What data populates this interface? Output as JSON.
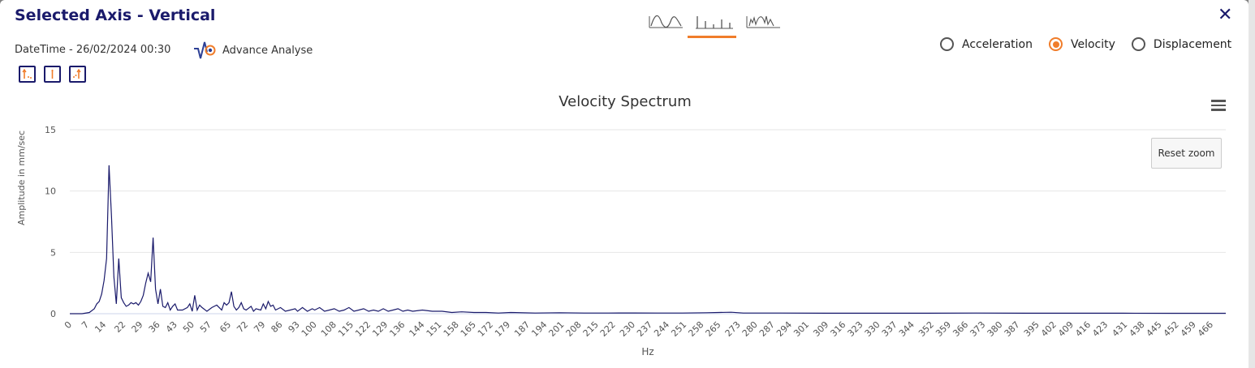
{
  "modal": {
    "title": "Selected Axis - Vertical",
    "close_icon": "close-icon",
    "datetime": "DateTime - 26/02/2024 00:30",
    "advance_analyse": "Advance Analyse"
  },
  "view_tabs": [
    {
      "name": "waveform-view-icon",
      "active": false
    },
    {
      "name": "spectrum-view-icon",
      "active": true
    },
    {
      "name": "combined-view-icon",
      "active": false
    }
  ],
  "radios": [
    {
      "label": "Acceleration",
      "selected": false
    },
    {
      "label": "Velocity",
      "selected": true
    },
    {
      "label": "Displacement",
      "selected": false
    }
  ],
  "reset_zoom": "Reset zoom",
  "colors": {
    "accent": "#f07d2b",
    "brand": "#1a1a6b",
    "series": "#1a1a6b",
    "grid": "#e6e6e6"
  },
  "chart_data": {
    "type": "line",
    "title": "Velocity Spectrum",
    "xlabel": "Hz",
    "ylabel": "Amplitude in mm/sec",
    "xlim": [
      0,
      472
    ],
    "ylim": [
      0,
      15
    ],
    "grid": true,
    "y_ticks": [
      "0",
      "5",
      "10",
      "15"
    ],
    "x_ticks": [
      "0",
      "7",
      "14",
      "22",
      "29",
      "36",
      "43",
      "50",
      "57",
      "65",
      "72",
      "79",
      "86",
      "93",
      "100",
      "108",
      "115",
      "122",
      "129",
      "136",
      "144",
      "151",
      "158",
      "165",
      "172",
      "179",
      "187",
      "194",
      "201",
      "208",
      "215",
      "222",
      "230",
      "237",
      "244",
      "251",
      "258",
      "265",
      "273",
      "280",
      "287",
      "294",
      "301",
      "309",
      "316",
      "323",
      "330",
      "337",
      "344",
      "352",
      "359",
      "366",
      "373",
      "380",
      "387",
      "395",
      "402",
      "409",
      "416",
      "423",
      "431",
      "438",
      "445",
      "452",
      "459",
      "466"
    ],
    "series": [
      {
        "points": [
          [
            0,
            0
          ],
          [
            5,
            0
          ],
          [
            8,
            0.1
          ],
          [
            10,
            0.4
          ],
          [
            11,
            0.8
          ],
          [
            12,
            1.0
          ],
          [
            13,
            1.6
          ],
          [
            14,
            2.7
          ],
          [
            15,
            4.5
          ],
          [
            16,
            12.1
          ],
          [
            17,
            8.0
          ],
          [
            18,
            3.0
          ],
          [
            19,
            0.8
          ],
          [
            20,
            4.5
          ],
          [
            21,
            1.3
          ],
          [
            22,
            0.9
          ],
          [
            23,
            0.6
          ],
          [
            24,
            0.7
          ],
          [
            25,
            0.9
          ],
          [
            26,
            0.8
          ],
          [
            27,
            0.9
          ],
          [
            28,
            0.7
          ],
          [
            29,
            1.0
          ],
          [
            30,
            1.5
          ],
          [
            31,
            2.5
          ],
          [
            32,
            3.3
          ],
          [
            33,
            2.6
          ],
          [
            34,
            6.2
          ],
          [
            35,
            2.0
          ],
          [
            36,
            0.8
          ],
          [
            37,
            2.0
          ],
          [
            38,
            0.6
          ],
          [
            39,
            0.5
          ],
          [
            40,
            0.9
          ],
          [
            41,
            0.3
          ],
          [
            42,
            0.6
          ],
          [
            43,
            0.8
          ],
          [
            44,
            0.3
          ],
          [
            46,
            0.3
          ],
          [
            48,
            0.5
          ],
          [
            49,
            0.8
          ],
          [
            50,
            0.2
          ],
          [
            51,
            1.5
          ],
          [
            52,
            0.3
          ],
          [
            53,
            0.7
          ],
          [
            54,
            0.5
          ],
          [
            56,
            0.2
          ],
          [
            58,
            0.5
          ],
          [
            60,
            0.7
          ],
          [
            62,
            0.3
          ],
          [
            63,
            0.9
          ],
          [
            64,
            0.7
          ],
          [
            65,
            0.9
          ],
          [
            66,
            1.8
          ],
          [
            67,
            0.6
          ],
          [
            68,
            0.3
          ],
          [
            69,
            0.5
          ],
          [
            70,
            0.9
          ],
          [
            71,
            0.4
          ],
          [
            72,
            0.3
          ],
          [
            74,
            0.6
          ],
          [
            75,
            0.2
          ],
          [
            76,
            0.4
          ],
          [
            78,
            0.3
          ],
          [
            79,
            0.8
          ],
          [
            80,
            0.4
          ],
          [
            81,
            1.0
          ],
          [
            82,
            0.6
          ],
          [
            83,
            0.7
          ],
          [
            84,
            0.3
          ],
          [
            86,
            0.5
          ],
          [
            88,
            0.2
          ],
          [
            90,
            0.3
          ],
          [
            92,
            0.4
          ],
          [
            93,
            0.2
          ],
          [
            95,
            0.5
          ],
          [
            97,
            0.2
          ],
          [
            99,
            0.4
          ],
          [
            100,
            0.3
          ],
          [
            102,
            0.5
          ],
          [
            104,
            0.2
          ],
          [
            106,
            0.3
          ],
          [
            108,
            0.4
          ],
          [
            110,
            0.2
          ],
          [
            112,
            0.3
          ],
          [
            114,
            0.5
          ],
          [
            116,
            0.2
          ],
          [
            118,
            0.3
          ],
          [
            120,
            0.4
          ],
          [
            122,
            0.2
          ],
          [
            124,
            0.3
          ],
          [
            126,
            0.2
          ],
          [
            128,
            0.4
          ],
          [
            130,
            0.2
          ],
          [
            132,
            0.3
          ],
          [
            134,
            0.4
          ],
          [
            136,
            0.2
          ],
          [
            138,
            0.3
          ],
          [
            140,
            0.2
          ],
          [
            144,
            0.3
          ],
          [
            148,
            0.2
          ],
          [
            152,
            0.2
          ],
          [
            156,
            0.1
          ],
          [
            160,
            0.15
          ],
          [
            165,
            0.1
          ],
          [
            170,
            0.1
          ],
          [
            175,
            0.05
          ],
          [
            180,
            0.1
          ],
          [
            190,
            0.05
          ],
          [
            200,
            0.08
          ],
          [
            210,
            0.05
          ],
          [
            220,
            0.05
          ],
          [
            230,
            0.06
          ],
          [
            240,
            0.05
          ],
          [
            250,
            0.05
          ],
          [
            260,
            0.08
          ],
          [
            265,
            0.1
          ],
          [
            270,
            0.12
          ],
          [
            275,
            0.05
          ],
          [
            290,
            0.05
          ],
          [
            310,
            0.04
          ],
          [
            330,
            0.04
          ],
          [
            350,
            0.04
          ],
          [
            370,
            0.05
          ],
          [
            390,
            0.04
          ],
          [
            410,
            0.04
          ],
          [
            430,
            0.04
          ],
          [
            450,
            0.03
          ],
          [
            472,
            0.03
          ]
        ]
      }
    ]
  }
}
